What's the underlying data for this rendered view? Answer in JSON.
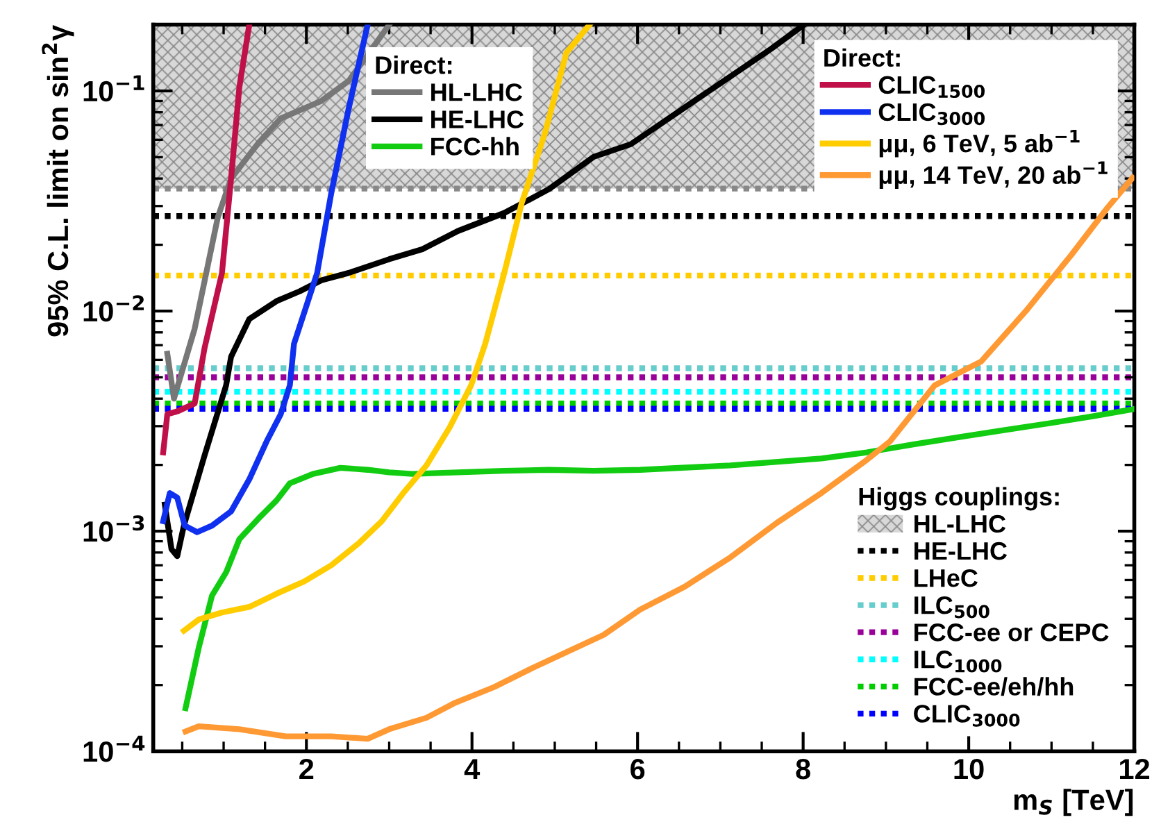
{
  "chart_data": {
    "type": "line",
    "xlabel": "m$_{S}$ [TeV]",
    "ylabel": "95% C.L. limit on sin$^{2}$γ",
    "legend_title": "Direct:",
    "annotations": [
      "Higgs couplings:"
    ],
    "xlim": [
      0.15,
      12
    ],
    "xticks": [
      2,
      4,
      6,
      8,
      10,
      12
    ],
    "ylim": [
      0.0001,
      0.2
    ],
    "log": true,
    "yticks": [
      {
        "value": 0.0001,
        "label": "10$^{−4}$"
      },
      {
        "value": 0.001,
        "label": "10$^{−3}$"
      },
      {
        "value": 0.01,
        "label": "10$^{−2}$"
      },
      {
        "value": 0.1,
        "label": "10$^{−1}$"
      }
    ],
    "legend": "right",
    "grid": false,
    "marker": "none",
    "line_style": "solid",
    "series": [
      {
        "name": "HL-LHC",
        "color": "#777777",
        "x": [
          0.32,
          0.4,
          0.65,
          0.93,
          1.09,
          1.42,
          1.69,
          2.18,
          2.51,
          2.79,
          3.0
        ],
        "values": [
          0.0064,
          0.004,
          0.0083,
          0.0267,
          0.04,
          0.058,
          0.075,
          0.09,
          0.111,
          0.155,
          0.2
        ]
      },
      {
        "name": "HE-LHC",
        "color": "#000000",
        "x": [
          0.29,
          0.37,
          0.44,
          0.52,
          0.77,
          1.03,
          1.09,
          1.31,
          1.64,
          1.92,
          2.18,
          2.51,
          3.0,
          3.4,
          3.83,
          4.39,
          4.93,
          5.47,
          5.92,
          6.74,
          7.61,
          8.01
        ],
        "values": [
          0.00132,
          0.00083,
          0.00077,
          0.00106,
          0.00221,
          0.0046,
          0.0062,
          0.0092,
          0.0111,
          0.0123,
          0.0138,
          0.0149,
          0.0172,
          0.0191,
          0.0231,
          0.0279,
          0.0358,
          0.0502,
          0.0573,
          0.093,
          0.155,
          0.2
        ]
      },
      {
        "name": "FCC-hh",
        "color": "#11cc11",
        "x": [
          0.54,
          0.7,
          0.86,
          1.03,
          1.19,
          1.42,
          1.64,
          1.8,
          2.08,
          2.41,
          2.74,
          3.0,
          3.28,
          3.83,
          4.39,
          4.93,
          5.47,
          6.03,
          7.12,
          8.22,
          8.77,
          9.33,
          9.87,
          10.41,
          10.97,
          11.51,
          11.98
        ],
        "values": [
          0.000157,
          0.000296,
          0.00051,
          0.00065,
          0.00092,
          0.00114,
          0.00138,
          0.00165,
          0.00182,
          0.00194,
          0.0019,
          0.00185,
          0.00182,
          0.00185,
          0.00188,
          0.0019,
          0.00188,
          0.0019,
          0.00199,
          0.00214,
          0.00228,
          0.00248,
          0.00267,
          0.00287,
          0.00309,
          0.00333,
          0.00358
        ]
      },
      {
        "name": "CLIC$_{1500}$",
        "color": "#c0104a",
        "x": [
          0.27,
          0.32,
          0.44,
          0.65,
          0.77,
          0.98,
          1.09,
          1.19,
          1.31
        ],
        "values": [
          0.00228,
          0.0034,
          0.0035,
          0.0038,
          0.0068,
          0.0149,
          0.04,
          0.104,
          0.2
        ]
      },
      {
        "name": "CLIC$_{3000}$",
        "color": "#1030f0",
        "x": [
          0.27,
          0.35,
          0.44,
          0.53,
          0.68,
          0.86,
          1.09,
          1.31,
          1.52,
          1.69,
          1.8,
          1.85,
          2.13,
          2.3,
          2.51,
          2.74
        ],
        "values": [
          0.00111,
          0.00149,
          0.00142,
          0.00106,
          0.00099,
          0.00106,
          0.00123,
          0.00172,
          0.00256,
          0.0034,
          0.0046,
          0.0071,
          0.0149,
          0.0343,
          0.083,
          0.2
        ]
      },
      {
        "name": "μμ, 6 TeV, 5 ab$^{−1}$",
        "color": "#ffcc00",
        "x": [
          0.52,
          0.7,
          0.98,
          1.31,
          1.64,
          1.97,
          2.3,
          2.63,
          2.91,
          3.17,
          3.45,
          3.73,
          3.99,
          4.16,
          4.39,
          4.6,
          4.88,
          5.14,
          5.42
        ],
        "values": [
          0.000353,
          0.000397,
          0.000427,
          0.000453,
          0.00052,
          0.00059,
          0.0007,
          0.00088,
          0.00111,
          0.00149,
          0.00199,
          0.00296,
          0.0046,
          0.0071,
          0.0149,
          0.0309,
          0.064,
          0.149,
          0.2
        ]
      },
      {
        "name": "μμ, 14 TeV, 20 ab$^{−1}$",
        "color": "#ff9933",
        "x": [
          0.54,
          0.7,
          1.19,
          1.75,
          2.3,
          2.74,
          3.0,
          3.45,
          3.78,
          4.27,
          4.72,
          5.26,
          5.59,
          6.03,
          6.57,
          7.12,
          7.68,
          8.22,
          8.77,
          9.05,
          9.59,
          10.15,
          10.69,
          11.24,
          11.68,
          11.98
        ],
        "values": [
          0.000123,
          0.00013,
          0.000126,
          0.000117,
          0.000117,
          0.000114,
          0.000126,
          0.000142,
          0.000165,
          0.000196,
          0.000238,
          0.000296,
          0.000338,
          0.00044,
          0.00056,
          0.00076,
          0.00109,
          0.00149,
          0.00211,
          0.00256,
          0.0046,
          0.0059,
          0.01,
          0.018,
          0.0296,
          0.0403
        ]
      }
    ],
    "bands": [
      {
        "axis": "y",
        "from": 0.036,
        "to": 0.2,
        "label": "HL-LHC",
        "color": "#888888"
      }
    ],
    "ref_lines": [
      {
        "axis": "y",
        "value": 0.036,
        "color": "#888888",
        "line_style": "dotted"
      },
      {
        "axis": "y",
        "value": 0.027,
        "label": "HE-LHC",
        "color": "#000000",
        "line_style": "dotted"
      },
      {
        "axis": "y",
        "value": 0.0145,
        "label": "LHeC",
        "color": "#ffcc00",
        "line_style": "dotted"
      },
      {
        "axis": "y",
        "value": 0.0055,
        "label": "ILC$_{500}$",
        "color": "#66cccc",
        "line_style": "dotted"
      },
      {
        "axis": "y",
        "value": 0.005,
        "label": "FCC-ee or CEPC",
        "color": "#990099",
        "line_style": "dotted"
      },
      {
        "axis": "y",
        "value": 0.0043,
        "label": "ILC$_{1000}$",
        "color": "#00ffff",
        "line_style": "dotted"
      },
      {
        "axis": "y",
        "value": 0.0038,
        "label": "FCC-ee/eh/hh",
        "color": "#00cc00",
        "line_style": "dotted"
      },
      {
        "axis": "y",
        "value": 0.0036,
        "label": "CLIC$_{3000}$",
        "color": "#0000ff",
        "line_style": "dotted"
      }
    ]
  }
}
